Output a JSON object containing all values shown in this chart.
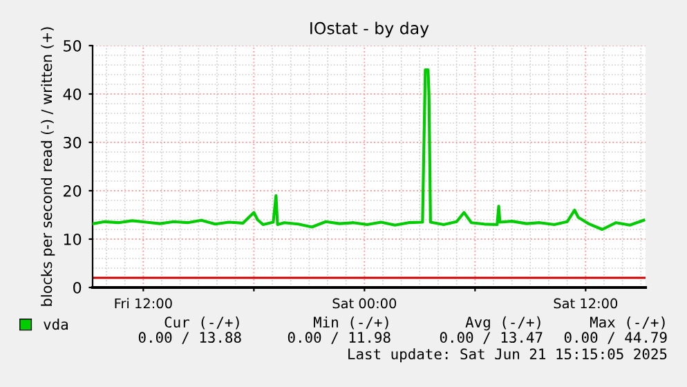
{
  "chart_data": {
    "type": "line",
    "title": "IOstat - by day",
    "ylabel": "blocks per second read (-) / written (+)",
    "xlim": [
      "2025-06-20T09:15",
      "2025-06-21T15:15"
    ],
    "xticks": [
      {
        "value": "2025-06-20T12:00",
        "label": "Fri 12:00"
      },
      {
        "value": "2025-06-20T18:00",
        "label": null
      },
      {
        "value": "2025-06-21T00:00",
        "label": "Sat 00:00"
      },
      {
        "value": "2025-06-21T06:00",
        "label": null
      },
      {
        "value": "2025-06-21T12:00",
        "label": "Sat 12:00"
      }
    ],
    "ylim": [
      0,
      50
    ],
    "yticks": [
      0,
      10,
      20,
      30,
      40,
      50
    ],
    "grid": true,
    "legend": "bottom left",
    "ref_lines": [
      {
        "axis": "y",
        "value": 2,
        "color": "#cc0000"
      }
    ],
    "series": [
      {
        "name": "vda",
        "color": "#00cc00",
        "x": [
          "2025-06-20T09:18",
          "2025-06-20T09:54",
          "2025-06-20T10:39",
          "2025-06-20T11:24",
          "2025-06-20T12:09",
          "2025-06-20T12:54",
          "2025-06-20T13:39",
          "2025-06-20T14:24",
          "2025-06-20T15:09",
          "2025-06-20T15:54",
          "2025-06-20T16:39",
          "2025-06-20T17:24",
          "2025-06-20T18:00",
          "2025-06-20T18:12",
          "2025-06-20T18:30",
          "2025-06-20T19:03",
          "2025-06-20T19:12",
          "2025-06-20T19:17",
          "2025-06-20T19:39",
          "2025-06-20T20:24",
          "2025-06-20T21:09",
          "2025-06-20T21:54",
          "2025-06-20T22:39",
          "2025-06-20T23:24",
          "2025-06-21T00:09",
          "2025-06-21T00:54",
          "2025-06-21T01:39",
          "2025-06-21T02:24",
          "2025-06-21T03:09",
          "2025-06-21T03:18",
          "2025-06-21T03:27",
          "2025-06-21T03:30",
          "2025-06-21T03:35",
          "2025-06-21T04:18",
          "2025-06-21T05:00",
          "2025-06-21T05:24",
          "2025-06-21T05:48",
          "2025-06-21T06:30",
          "2025-06-21T07:12",
          "2025-06-21T07:17",
          "2025-06-21T07:21",
          "2025-06-21T08:00",
          "2025-06-21T08:48",
          "2025-06-21T09:30",
          "2025-06-21T10:18",
          "2025-06-21T11:00",
          "2025-06-21T11:24",
          "2025-06-21T11:36",
          "2025-06-21T12:09",
          "2025-06-21T12:54",
          "2025-06-21T13:39",
          "2025-06-21T14:24",
          "2025-06-21T15:09"
        ],
        "values": [
          13.2,
          13.6,
          13.4,
          13.8,
          13.5,
          13.2,
          13.6,
          13.4,
          13.9,
          13.1,
          13.5,
          13.3,
          15.5,
          14.0,
          13.0,
          13.5,
          19.0,
          13.0,
          13.4,
          13.1,
          12.5,
          13.6,
          13.2,
          13.4,
          13.0,
          13.5,
          12.9,
          13.4,
          13.5,
          45.0,
          45.0,
          40.0,
          13.5,
          13.0,
          13.6,
          15.5,
          13.4,
          13.1,
          13.0,
          16.8,
          13.5,
          13.7,
          13.2,
          13.4,
          13.0,
          13.6,
          16.0,
          14.5,
          13.2,
          12.0,
          13.4,
          12.9,
          13.9
        ]
      }
    ],
    "annotations": [
      "Cur (-/+)",
      "Min (-/+)",
      "Avg (-/+)",
      "Max (-/+)",
      "0.00 / 13.88",
      "0.00 / 11.98",
      "0.00 / 13.47",
      "0.00 / 44.79",
      "Last update: Sat Jun 21 15:15:05 2025"
    ]
  }
}
